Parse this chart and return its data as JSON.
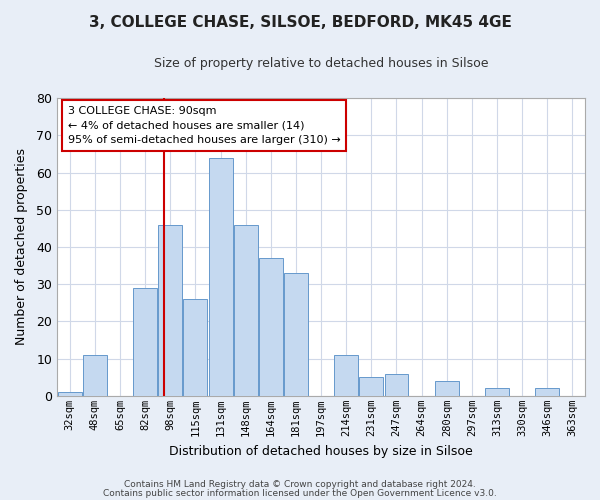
{
  "title": "3, COLLEGE CHASE, SILSOE, BEDFORD, MK45 4GE",
  "subtitle": "Size of property relative to detached houses in Silsoe",
  "xlabel": "Distribution of detached houses by size in Silsoe",
  "ylabel": "Number of detached properties",
  "categories": [
    "32sqm",
    "48sqm",
    "65sqm",
    "82sqm",
    "98sqm",
    "115sqm",
    "131sqm",
    "148sqm",
    "164sqm",
    "181sqm",
    "197sqm",
    "214sqm",
    "231sqm",
    "247sqm",
    "264sqm",
    "280sqm",
    "297sqm",
    "313sqm",
    "330sqm",
    "346sqm",
    "363sqm"
  ],
  "values": [
    1,
    11,
    0,
    29,
    46,
    26,
    64,
    46,
    37,
    33,
    0,
    11,
    5,
    6,
    0,
    4,
    0,
    2,
    0,
    2,
    0
  ],
  "bar_color": "#c5d9f0",
  "bar_edge_color": "#6699cc",
  "marker_line_color": "#cc0000",
  "annotation_text": "3 COLLEGE CHASE: 90sqm\n← 4% of detached houses are smaller (14)\n95% of semi-detached houses are larger (310) →",
  "annotation_box_color": "#ffffff",
  "annotation_box_edge_color": "#cc0000",
  "ylim": [
    0,
    80
  ],
  "yticks": [
    0,
    10,
    20,
    30,
    40,
    50,
    60,
    70,
    80
  ],
  "plot_bg_color": "#ffffff",
  "fig_bg_color": "#e8eef7",
  "grid_color": "#d0d8e8",
  "footer_line1": "Contains HM Land Registry data © Crown copyright and database right 2024.",
  "footer_line2": "Contains public sector information licensed under the Open Government Licence v3.0."
}
